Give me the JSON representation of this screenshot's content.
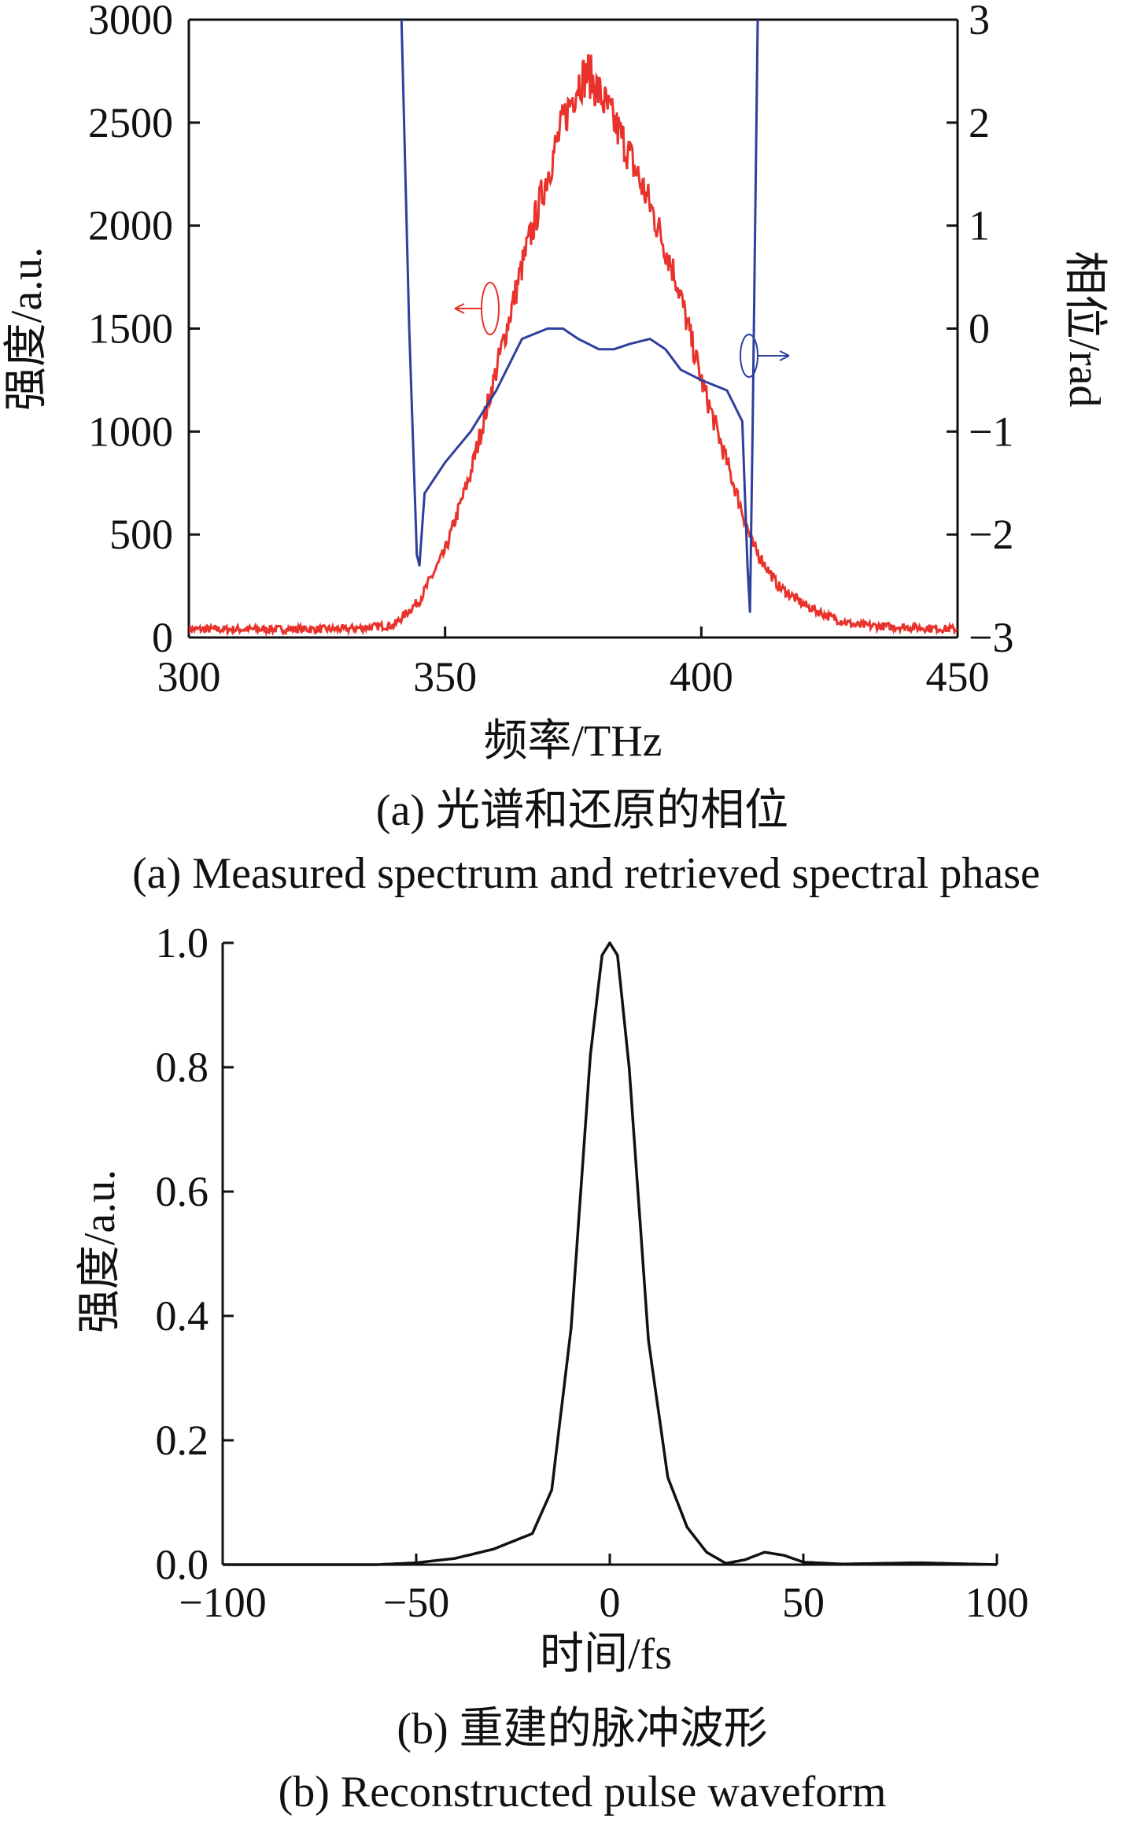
{
  "colors": {
    "spectrum": "#e8322b",
    "phase": "#2f3f9c",
    "pulse": "#111111"
  },
  "chart_data": [
    {
      "type": "line",
      "caption_cn": "(a) 光谱和还原的相位",
      "caption_en": "(a) Measured spectrum and retrieved spectral phase",
      "xlabel": "频率/THz",
      "ylabel": "强度/a.u.",
      "y2label": "相位/rad",
      "xlim": [
        300,
        450
      ],
      "ylim": [
        0,
        3000
      ],
      "y2lim": [
        -3,
        3
      ],
      "xticks": [
        "300",
        "350",
        "400",
        "450"
      ],
      "yticks": [
        "0",
        "500",
        "1000",
        "1500",
        "2000",
        "2500",
        "3000"
      ],
      "y2ticks": [
        "−3",
        "−2",
        "−1",
        "0",
        "1",
        "2",
        "3"
      ],
      "annotations": [
        "left arrow marks the intensity curve (left axis)",
        "right arrow marks the phase curve (right axis)"
      ],
      "series": [
        {
          "axis": "left",
          "color": "#e8322b",
          "x": [
            300,
            330,
            340,
            345,
            350,
            355,
            360,
            365,
            370,
            373,
            376,
            378,
            381,
            385,
            390,
            395,
            400,
            405,
            410,
            415,
            420,
            425,
            430,
            440,
            450
          ],
          "y": [
            40,
            40,
            60,
            180,
            420,
            800,
            1300,
            1800,
            2250,
            2500,
            2700,
            2740,
            2600,
            2400,
            2100,
            1750,
            1250,
            850,
            450,
            250,
            160,
            100,
            60,
            50,
            40
          ]
        },
        {
          "axis": "right",
          "color": "#2f3f9c",
          "x": [
            341.5,
            343,
            344.5,
            345,
            346,
            350,
            355,
            360,
            365,
            370,
            373,
            376,
            380,
            383,
            386,
            390,
            393,
            396,
            400,
            405,
            408,
            409,
            409.5,
            410,
            411
          ],
          "y": [
            3,
            0,
            -2.2,
            -2.3,
            -1.6,
            -1.3,
            -1.0,
            -0.6,
            -0.1,
            0.0,
            0.0,
            -0.1,
            -0.2,
            -0.2,
            -0.15,
            -0.1,
            -0.2,
            -0.4,
            -0.5,
            -0.6,
            -0.9,
            -2.3,
            -2.75,
            -1,
            3
          ]
        }
      ]
    },
    {
      "type": "line",
      "caption_cn": "(b) 重建的脉冲波形",
      "caption_en": "(b) Reconstructed pulse waveform",
      "xlabel": "时间/fs",
      "ylabel": "强度/a.u.",
      "xlim": [
        -100,
        100
      ],
      "ylim": [
        0,
        1
      ],
      "xticks": [
        "−100",
        "−50",
        "0",
        "50",
        "100"
      ],
      "yticks": [
        "0.0",
        "0.2",
        "0.4",
        "0.6",
        "0.8",
        "1.0"
      ],
      "series": [
        {
          "color": "#111111",
          "x": [
            -100,
            -60,
            -50,
            -40,
            -30,
            -20,
            -15,
            -10,
            -5,
            -2,
            0,
            2,
            5,
            10,
            15,
            20,
            25,
            30,
            35,
            40,
            45,
            50,
            60,
            80,
            100
          ],
          "y": [
            0,
            0,
            0.003,
            0.01,
            0.025,
            0.05,
            0.12,
            0.38,
            0.82,
            0.98,
            1.0,
            0.98,
            0.8,
            0.36,
            0.14,
            0.06,
            0.02,
            0.002,
            0.008,
            0.02,
            0.015,
            0.004,
            0.001,
            0.003,
            0
          ]
        }
      ]
    }
  ]
}
